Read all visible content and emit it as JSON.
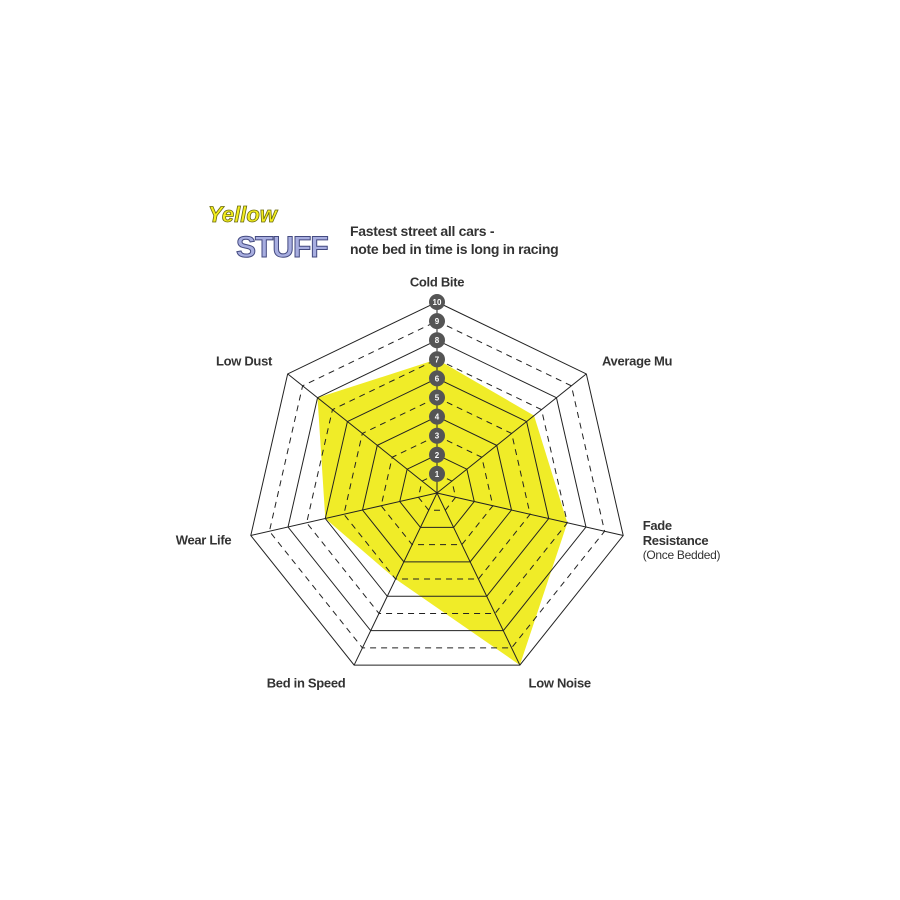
{
  "logo": {
    "line1": "Yellow",
    "line2": "STUFF"
  },
  "chart_data": {
    "type": "radar",
    "title": "Fastest street all cars -",
    "subtitle": "note bed in time is long in racing",
    "categories": [
      "Cold Bite",
      "Average Mu",
      "Fade Resistance",
      "Low Noise",
      "Bed in Speed",
      "Wear Life",
      "Low Dust"
    ],
    "annotation": "(Once Bedded)",
    "values": [
      7,
      6.5,
      7,
      10,
      5,
      6,
      8
    ],
    "color": "#f0ec28",
    "rlim": [
      0,
      10
    ],
    "rticks": [
      1,
      2,
      3,
      4,
      5,
      6,
      7,
      8,
      9,
      10
    ]
  }
}
